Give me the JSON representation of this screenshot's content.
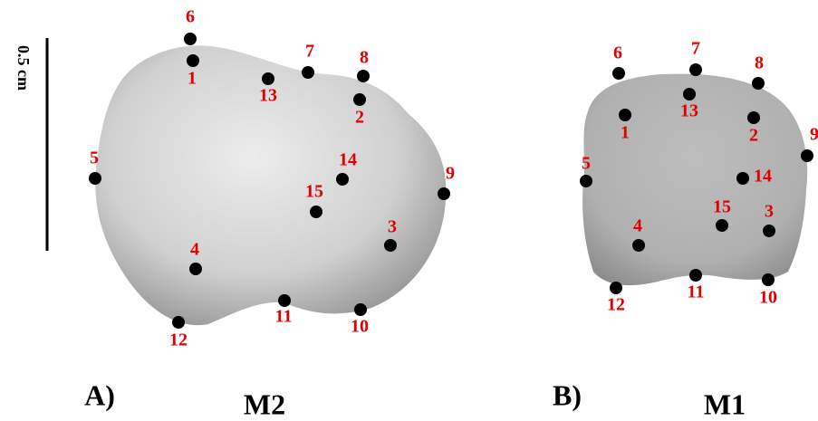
{
  "scale_bar": {
    "label": "0.5 cm"
  },
  "panels": [
    {
      "label": "A)",
      "title": "M2",
      "landmarks": [
        "1",
        "2",
        "3",
        "4",
        "5",
        "6",
        "7",
        "8",
        "9",
        "10",
        "11",
        "12",
        "13",
        "14",
        "15"
      ]
    },
    {
      "label": "B)",
      "title": "M1",
      "landmarks": [
        "1",
        "2",
        "3",
        "4",
        "5",
        "6",
        "7",
        "8",
        "9",
        "10",
        "11",
        "12",
        "13",
        "14",
        "15"
      ]
    }
  ]
}
